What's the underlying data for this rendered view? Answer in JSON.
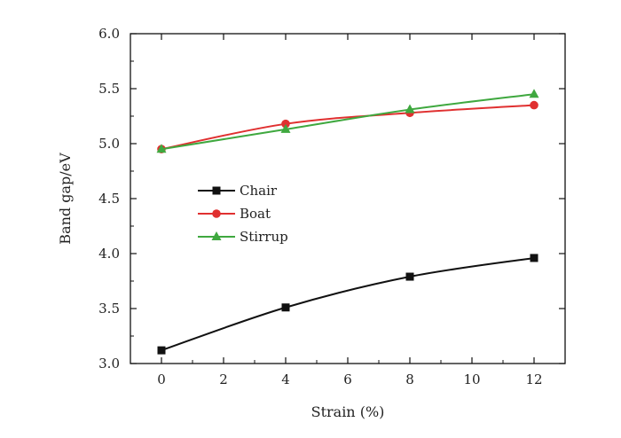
{
  "chart_data": {
    "type": "line",
    "title": "",
    "xlabel": "Strain (%)",
    "ylabel": "Band gap/eV",
    "xlim": [
      -1,
      13
    ],
    "ylim": [
      3.0,
      6.0
    ],
    "x_ticks": [
      0,
      2,
      4,
      6,
      8,
      10,
      12
    ],
    "x_tick_labels": [
      "0",
      "2",
      "4",
      "6",
      "8",
      "10",
      "12"
    ],
    "y_ticks": [
      3.0,
      3.5,
      4.0,
      4.5,
      5.0,
      5.5,
      6.0
    ],
    "y_tick_labels": [
      "3.0",
      "3.5",
      "4.0",
      "4.5",
      "5.0",
      "5.5",
      "6.0"
    ],
    "grid": false,
    "legend_position": "middle-left",
    "x": [
      0,
      4,
      8,
      12
    ],
    "series": [
      {
        "name": "Chair",
        "marker": "square",
        "color": "#111111",
        "values": [
          3.12,
          3.51,
          3.79,
          3.96
        ]
      },
      {
        "name": "Boat",
        "marker": "circle",
        "color": "#e03030",
        "values": [
          4.95,
          5.18,
          5.28,
          5.35
        ]
      },
      {
        "name": "Stirrup",
        "marker": "triangle",
        "color": "#3fa83f",
        "values": [
          4.95,
          5.13,
          5.31,
          5.45
        ]
      }
    ]
  }
}
